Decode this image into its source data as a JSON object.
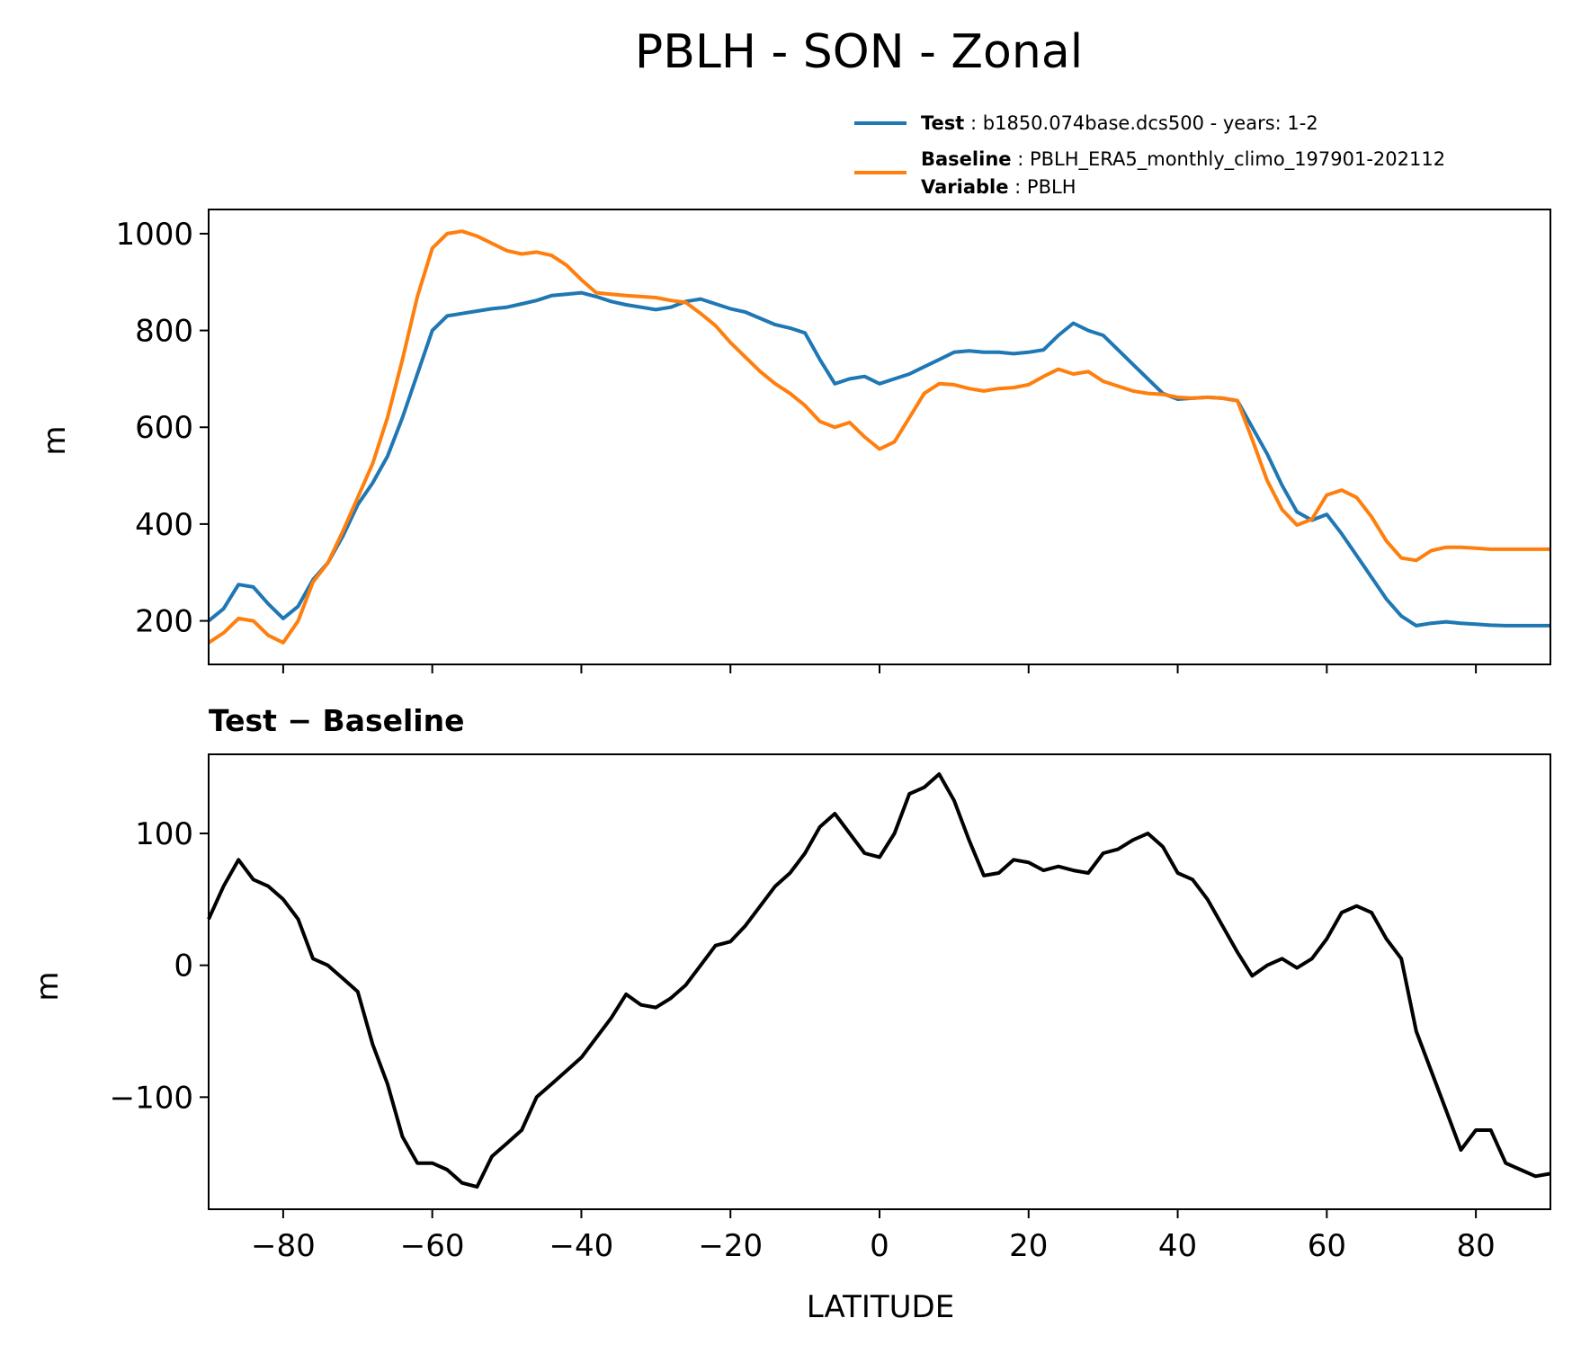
{
  "figure": {
    "title": "PBLH - SON - Zonal"
  },
  "legend": {
    "test_key": "Test",
    "test_value": "b1850.074base.dcs500 - years: 1-2",
    "baseline_key": "Baseline",
    "baseline_value": "PBLH_ERA5_monthly_climo_197901-202112",
    "variable_key": "Variable",
    "variable_value": "PBLH"
  },
  "colors": {
    "test": "#1f77b4",
    "baseline": "#ff7f0e",
    "difference": "#000000"
  },
  "chart_data": [
    {
      "type": "line",
      "title": "",
      "xlabel": "",
      "ylabel": "m",
      "xlim": [
        -90,
        90
      ],
      "ylim": [
        110,
        1050
      ],
      "yticks": [
        200,
        400,
        600,
        800,
        1000
      ],
      "xticks": [
        -80,
        -60,
        -40,
        -20,
        0,
        20,
        40,
        60,
        80
      ],
      "x": [
        -90,
        -88,
        -86,
        -84,
        -82,
        -80,
        -78,
        -76,
        -74,
        -72,
        -70,
        -68,
        -66,
        -64,
        -62,
        -60,
        -58,
        -56,
        -54,
        -52,
        -50,
        -48,
        -46,
        -44,
        -42,
        -40,
        -38,
        -36,
        -34,
        -32,
        -30,
        -28,
        -26,
        -24,
        -22,
        -20,
        -18,
        -16,
        -14,
        -12,
        -10,
        -8,
        -6,
        -4,
        -2,
        0,
        2,
        4,
        6,
        8,
        10,
        12,
        14,
        16,
        18,
        20,
        22,
        24,
        26,
        28,
        30,
        32,
        34,
        36,
        38,
        40,
        42,
        44,
        46,
        48,
        50,
        52,
        54,
        56,
        58,
        60,
        62,
        64,
        66,
        68,
        70,
        72,
        74,
        76,
        78,
        80,
        82,
        84,
        86,
        88,
        90
      ],
      "series": [
        {
          "name": "Test",
          "values": [
            200,
            225,
            275,
            270,
            235,
            205,
            230,
            285,
            320,
            375,
            440,
            485,
            540,
            620,
            710,
            800,
            830,
            835,
            840,
            845,
            848,
            855,
            862,
            872,
            875,
            878,
            870,
            860,
            853,
            848,
            843,
            848,
            860,
            865,
            855,
            845,
            838,
            825,
            812,
            805,
            795,
            740,
            690,
            700,
            705,
            690,
            700,
            710,
            725,
            740,
            755,
            758,
            755,
            755,
            752,
            755,
            760,
            790,
            815,
            800,
            790,
            760,
            730,
            700,
            670,
            658,
            660,
            662,
            660,
            655,
            600,
            545,
            480,
            425,
            408,
            420,
            380,
            335,
            290,
            245,
            210,
            190,
            195,
            198,
            195,
            193,
            191,
            190,
            190,
            190,
            190
          ]
        },
        {
          "name": "Baseline",
          "values": [
            155,
            175,
            205,
            200,
            170,
            155,
            200,
            280,
            320,
            385,
            455,
            525,
            620,
            740,
            870,
            970,
            1000,
            1005,
            995,
            980,
            965,
            958,
            962,
            955,
            935,
            905,
            878,
            875,
            872,
            870,
            868,
            862,
            858,
            835,
            810,
            775,
            745,
            715,
            690,
            670,
            645,
            612,
            600,
            610,
            580,
            555,
            570,
            620,
            670,
            690,
            688,
            680,
            675,
            680,
            682,
            688,
            705,
            720,
            710,
            715,
            695,
            685,
            675,
            670,
            668,
            662,
            660,
            662,
            660,
            655,
            575,
            490,
            430,
            398,
            410,
            460,
            470,
            455,
            415,
            365,
            330,
            325,
            345,
            352,
            352,
            350,
            348,
            348,
            348,
            348,
            348
          ]
        }
      ]
    },
    {
      "type": "line",
      "title": "Test − Baseline",
      "xlabel": "LATITUDE",
      "ylabel": "m",
      "xlim": [
        -90,
        90
      ],
      "ylim": [
        -185,
        160
      ],
      "yticks": [
        -100,
        0,
        100
      ],
      "xticks": [
        -80,
        -60,
        -40,
        -20,
        0,
        20,
        40,
        60,
        80
      ],
      "x": [
        -90,
        -88,
        -86,
        -84,
        -82,
        -80,
        -78,
        -76,
        -74,
        -72,
        -70,
        -68,
        -66,
        -64,
        -62,
        -60,
        -58,
        -56,
        -54,
        -52,
        -50,
        -48,
        -46,
        -44,
        -42,
        -40,
        -38,
        -36,
        -34,
        -32,
        -30,
        -28,
        -26,
        -24,
        -22,
        -20,
        -18,
        -16,
        -14,
        -12,
        -10,
        -8,
        -6,
        -4,
        -2,
        0,
        2,
        4,
        6,
        8,
        10,
        12,
        14,
        16,
        18,
        20,
        22,
        24,
        26,
        28,
        30,
        32,
        34,
        36,
        38,
        40,
        42,
        44,
        46,
        48,
        50,
        52,
        54,
        56,
        58,
        60,
        62,
        64,
        66,
        68,
        70,
        72,
        74,
        76,
        78,
        80,
        82,
        84,
        86,
        88,
        90
      ],
      "series": [
        {
          "name": "Test − Baseline",
          "values": [
            35,
            60,
            80,
            65,
            60,
            50,
            35,
            5,
            0,
            -10,
            -20,
            -60,
            -90,
            -130,
            -150,
            -150,
            -155,
            -165,
            -168,
            -145,
            -135,
            -125,
            -100,
            -90,
            -80,
            -70,
            -55,
            -40,
            -22,
            -30,
            -32,
            -25,
            -15,
            0,
            15,
            18,
            30,
            45,
            60,
            70,
            85,
            105,
            115,
            100,
            85,
            82,
            100,
            130,
            135,
            145,
            125,
            95,
            68,
            70,
            80,
            78,
            72,
            75,
            72,
            70,
            85,
            88,
            95,
            100,
            90,
            70,
            65,
            50,
            30,
            10,
            -8,
            0,
            5,
            -2,
            5,
            20,
            40,
            45,
            40,
            20,
            5,
            -50,
            -80,
            -110,
            -140,
            -125,
            -125,
            -150,
            -155,
            -160,
            -158
          ]
        }
      ]
    }
  ]
}
